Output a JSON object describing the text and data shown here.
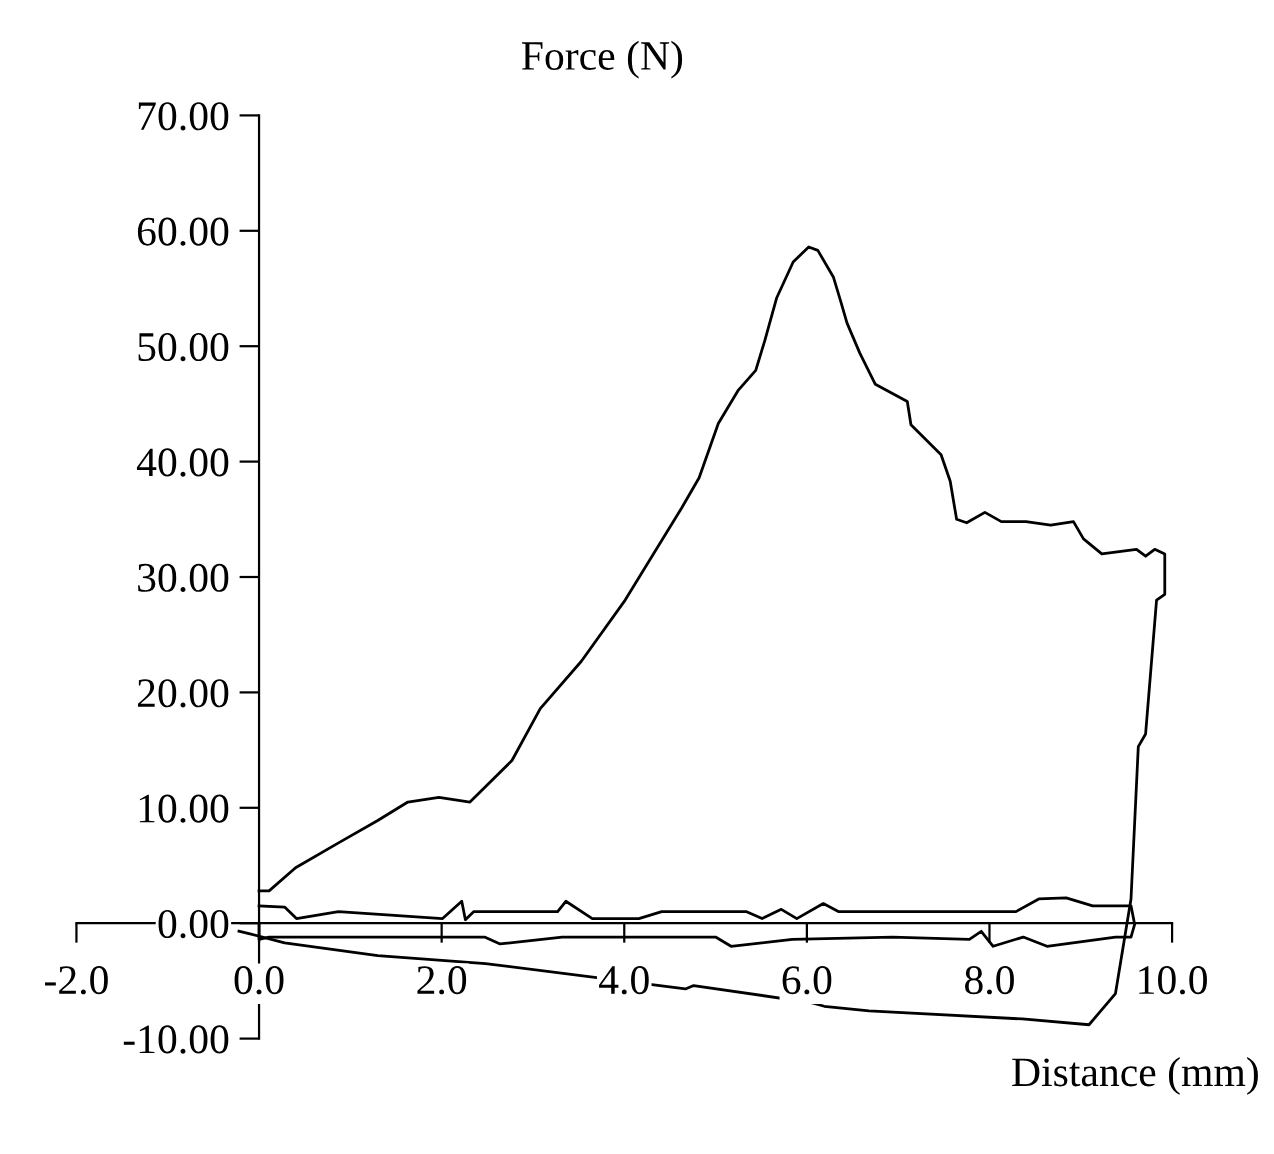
{
  "chart_data": {
    "type": "line",
    "xlabel": "Distance (mm)",
    "ylabel": "Force (N)",
    "xlim": [
      -2,
      10
    ],
    "ylim": [
      -10,
      70
    ],
    "xticks": [
      {
        "value": -2,
        "label": "-2.0"
      },
      {
        "value": 0,
        "label": "0.0"
      },
      {
        "value": 2,
        "label": "2.0"
      },
      {
        "value": 4,
        "label": "4.0"
      },
      {
        "value": 6,
        "label": "6.0"
      },
      {
        "value": 8,
        "label": "8.0"
      },
      {
        "value": 10,
        "label": "10.0"
      }
    ],
    "yticks": [
      {
        "value": -10,
        "label": "-10.00"
      },
      {
        "value": 0,
        "label": "0.00"
      },
      {
        "value": 10,
        "label": "10.00"
      },
      {
        "value": 20,
        "label": "20.00"
      },
      {
        "value": 30,
        "label": "30.00"
      },
      {
        "value": 40,
        "label": "40.00"
      },
      {
        "value": 50,
        "label": "50.00"
      },
      {
        "value": 60,
        "label": "60.00"
      },
      {
        "value": 70,
        "label": "70.00"
      }
    ],
    "grid": false,
    "legend": false,
    "marker": "none",
    "line_style": "solid",
    "series": [
      {
        "color": "#000000",
        "x": [
          0.0,
          0.11,
          0.4,
          0.88,
          1.3,
          1.63,
          1.97,
          2.31,
          2.77,
          3.08,
          3.53,
          4.01,
          4.63,
          4.82,
          5.03,
          5.25,
          5.44,
          5.54,
          5.67,
          5.85,
          6.02,
          6.12,
          6.29,
          6.37,
          6.44,
          6.58,
          6.75,
          7.1,
          7.14,
          7.47,
          7.57,
          7.64,
          7.75,
          7.95,
          8.13,
          8.4,
          8.67,
          8.92,
          9.03,
          9.23,
          9.61,
          9.71,
          9.81,
          9.92,
          9.92,
          9.83,
          9.71,
          9.63,
          9.55,
          9.38,
          9.09,
          8.36,
          6.68,
          6.19,
          6.06,
          4.76,
          4.67,
          2.48,
          1.3,
          0.28,
          -0.11,
          -0.22
        ],
        "values": [
          2.8,
          2.8,
          4.8,
          7,
          8.9,
          10.5,
          10.9,
          10.5,
          14.1,
          18.6,
          22.7,
          28,
          36,
          38.6,
          43.3,
          46.2,
          47.9,
          50.5,
          54.2,
          57.3,
          58.6,
          58.3,
          56,
          53.9,
          52,
          49.4,
          46.7,
          45.2,
          43.2,
          40.6,
          38.3,
          35,
          34.7,
          35.6,
          34.8,
          34.8,
          34.5,
          34.8,
          33.3,
          32,
          32.4,
          31.8,
          32.4,
          32,
          28.5,
          28,
          16.4,
          15.3,
          2.1,
          -6.1,
          -8.8,
          -8.3,
          -7.6,
          -7.2,
          -6.9,
          -5.4,
          -5.7,
          -3.5,
          -2.8,
          -1.7,
          -0.9,
          -0.7
        ]
      },
      {
        "color": "#000000",
        "x": [
          0.0,
          0.28,
          0.41,
          0.87,
          2.01,
          2.22,
          2.26,
          2.35,
          3.27,
          3.36,
          3.65,
          4.16,
          4.41,
          5.34,
          5.51,
          5.72,
          5.89,
          6.18,
          6.35,
          8.29,
          8.54,
          8.84,
          9.13,
          9.55,
          9.59,
          9.55,
          9.38,
          8.63,
          8.37,
          8.04,
          7.91,
          7.78,
          6.94,
          5.84,
          5.17,
          5.0,
          4.33,
          3.32,
          2.64,
          2.47,
          0.11,
          0.0,
          0.0
        ],
        "values": [
          1.5,
          1.4,
          0.4,
          1.0,
          0.4,
          1.9,
          0.3,
          1.0,
          1.0,
          1.9,
          0.4,
          0.4,
          1.0,
          1.0,
          0.4,
          1.2,
          0.4,
          1.7,
          1.0,
          1.0,
          2.1,
          2.2,
          1.5,
          1.5,
          -0.1,
          -1.2,
          -1.2,
          -2.0,
          -1.2,
          -2.0,
          -0.7,
          -1.4,
          -1.2,
          -1.4,
          -2.0,
          -1.2,
          -1.2,
          -1.2,
          -1.8,
          -1.2,
          -1.2,
          -1.4,
          -0.1
        ]
      }
    ]
  }
}
